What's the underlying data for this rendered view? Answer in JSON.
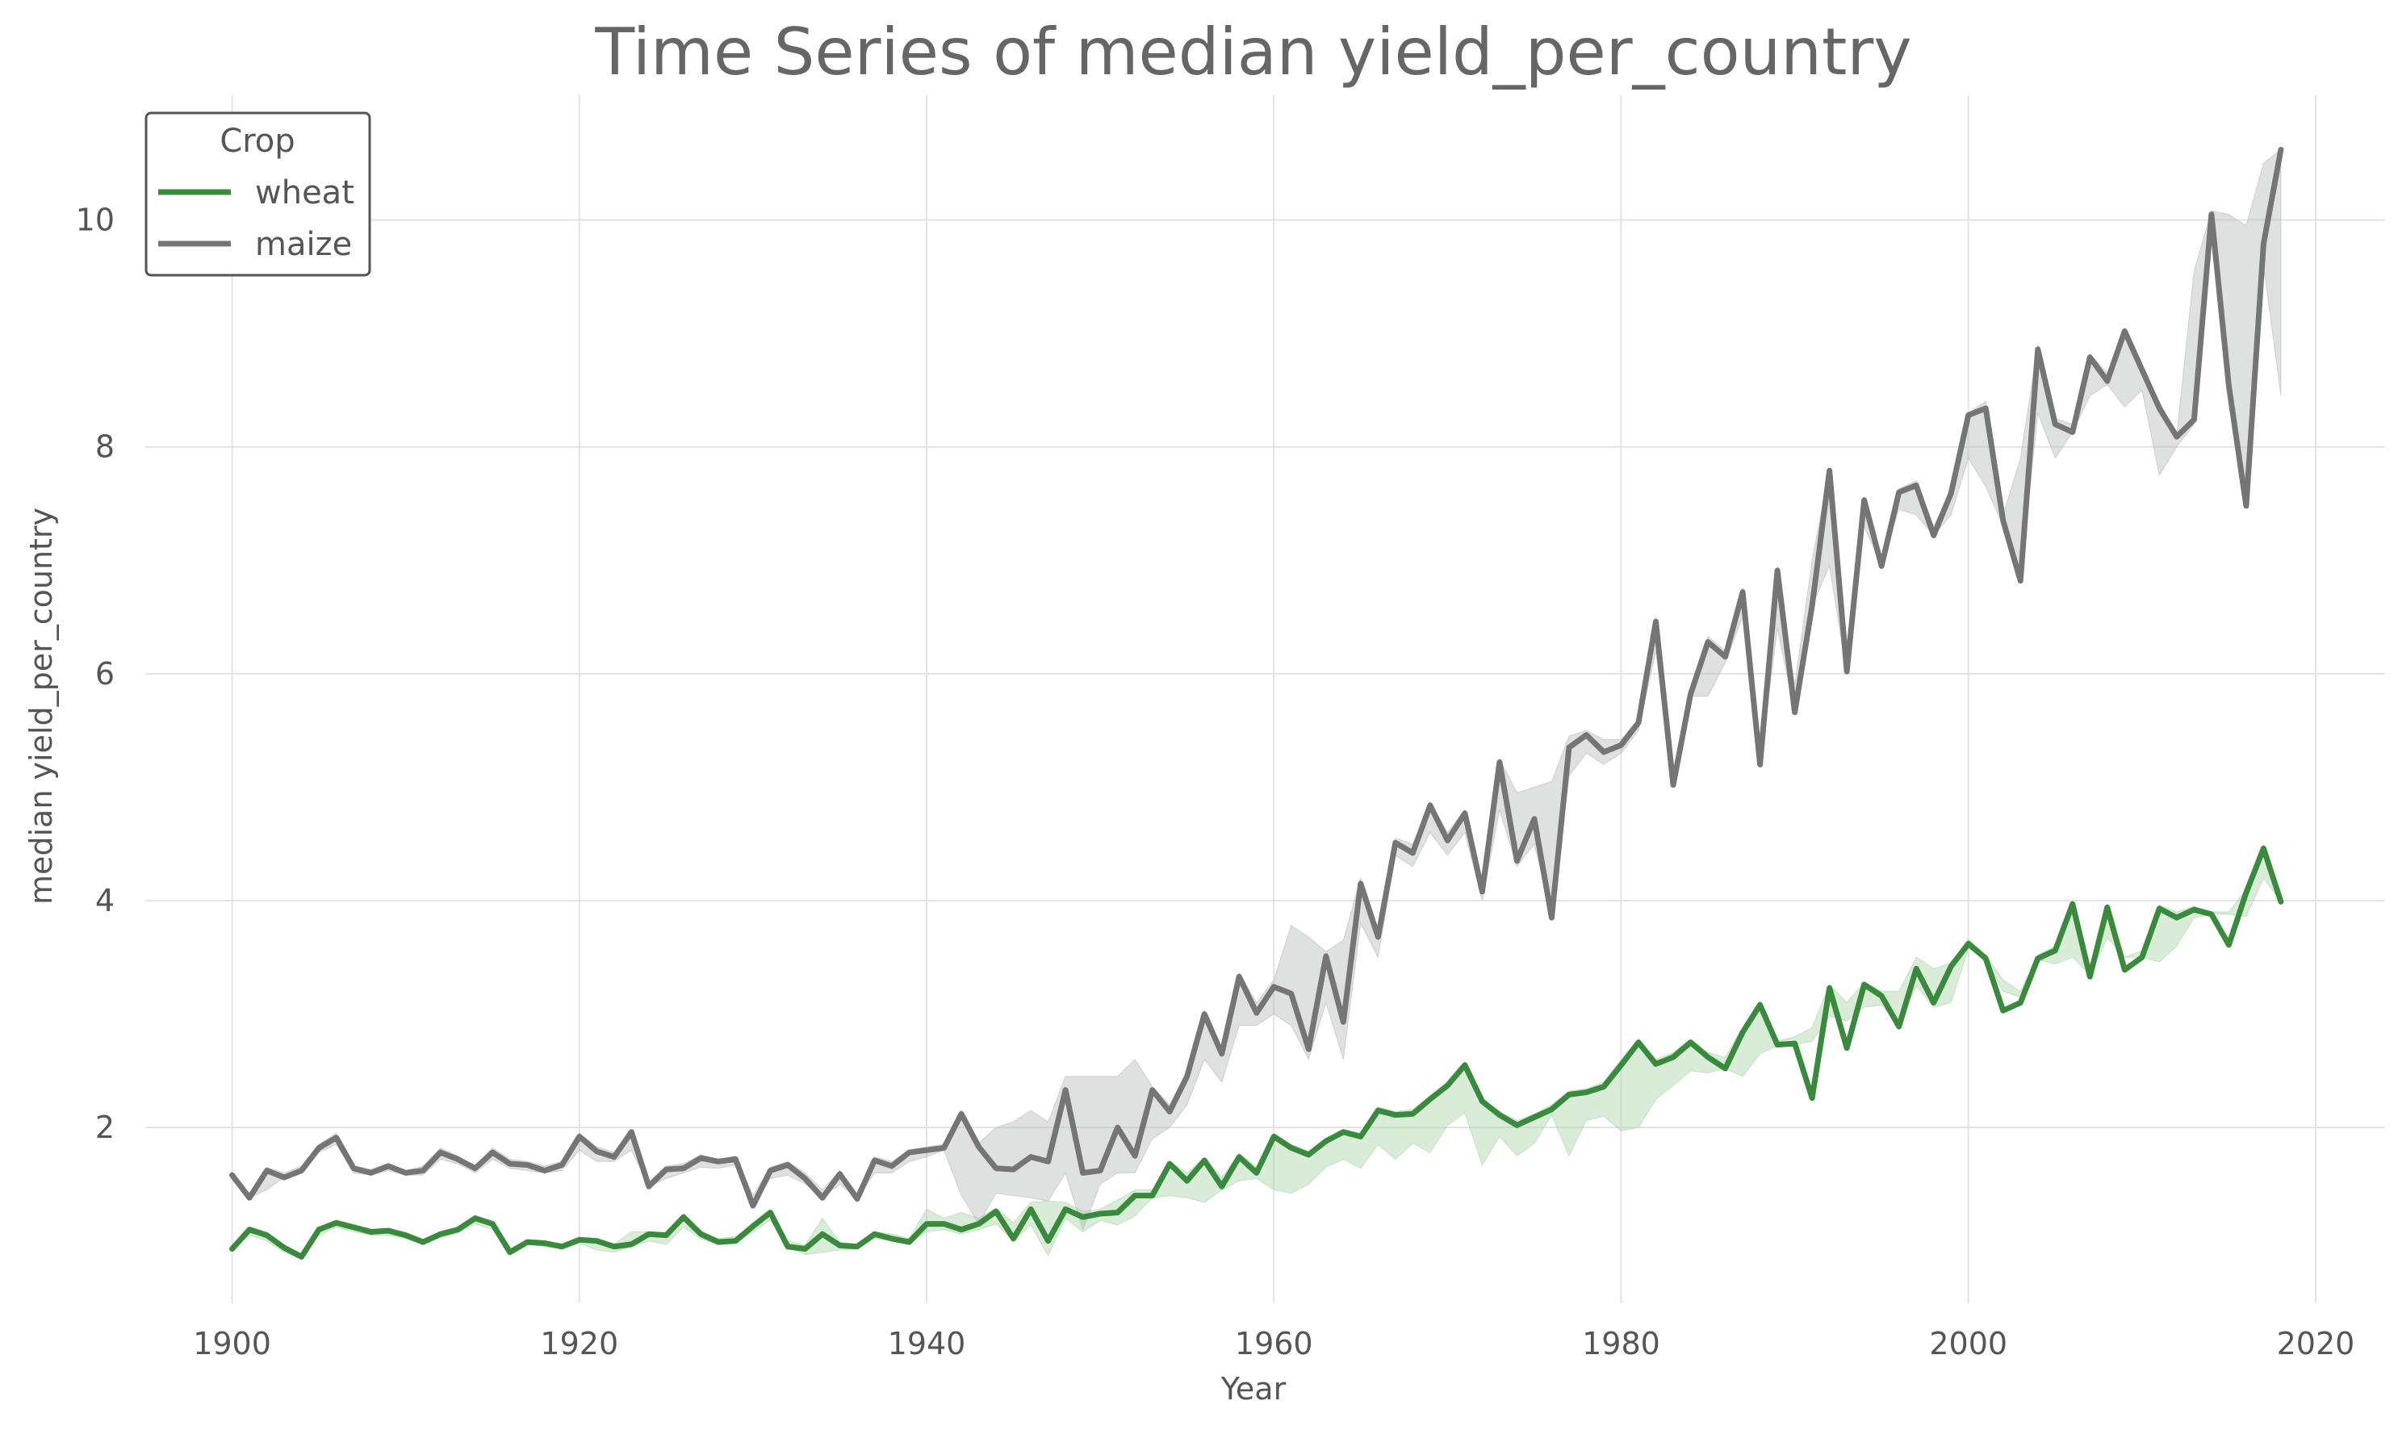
{
  "chart_data": {
    "type": "line",
    "title": "Time Series of median yield_per_country",
    "xlabel": "Year",
    "ylabel": "median yield_per_country",
    "xlim": [
      1895,
      2024
    ],
    "ylim": [
      0.45,
      11.1
    ],
    "xticks": [
      "1900",
      "1920",
      "1940",
      "1960",
      "1980",
      "2000",
      "2020"
    ],
    "yticks": [
      "2",
      "4",
      "6",
      "8",
      "10"
    ],
    "grid": true,
    "legend": {
      "title": "Crop",
      "placement": "top-left"
    },
    "x": [
      1900,
      1901,
      1902,
      1903,
      1904,
      1905,
      1906,
      1907,
      1908,
      1909,
      1910,
      1911,
      1912,
      1913,
      1914,
      1915,
      1916,
      1917,
      1918,
      1919,
      1920,
      1921,
      1922,
      1923,
      1924,
      1925,
      1926,
      1927,
      1928,
      1929,
      1930,
      1931,
      1932,
      1933,
      1934,
      1935,
      1936,
      1937,
      1938,
      1939,
      1940,
      1941,
      1942,
      1943,
      1944,
      1945,
      1946,
      1947,
      1948,
      1949,
      1950,
      1951,
      1952,
      1953,
      1954,
      1955,
      1956,
      1957,
      1958,
      1959,
      1960,
      1961,
      1962,
      1963,
      1964,
      1965,
      1966,
      1967,
      1968,
      1969,
      1970,
      1971,
      1972,
      1973,
      1974,
      1975,
      1976,
      1977,
      1978,
      1979,
      1980,
      1981,
      1982,
      1983,
      1984,
      1985,
      1986,
      1987,
      1988,
      1989,
      1990,
      1991,
      1992,
      1993,
      1994,
      1995,
      1996,
      1997,
      1998,
      1999,
      2000,
      2001,
      2002,
      2003,
      2004,
      2005,
      2006,
      2007,
      2008,
      2009,
      2010,
      2011,
      2012,
      2013,
      2014,
      2015,
      2016,
      2017,
      2018
    ],
    "series": [
      {
        "name": "wheat",
        "color": "#3a8a3e",
        "band_color": "#a8d5a8",
        "values": [
          0.93,
          1.1,
          1.05,
          0.94,
          0.86,
          1.1,
          1.16,
          1.12,
          1.08,
          1.09,
          1.05,
          0.99,
          1.06,
          1.1,
          1.2,
          1.15,
          0.9,
          0.99,
          0.98,
          0.95,
          1.01,
          1.0,
          0.95,
          0.97,
          1.06,
          1.05,
          1.21,
          1.06,
          0.99,
          1.0,
          1.13,
          1.25,
          0.95,
          0.93,
          1.06,
          0.96,
          0.95,
          1.06,
          1.02,
          0.99,
          1.15,
          1.15,
          1.1,
          1.15,
          1.26,
          1.02,
          1.28,
          1.0,
          1.28,
          1.21,
          1.24,
          1.25,
          1.4,
          1.4,
          1.68,
          1.53,
          1.71,
          1.48,
          1.74,
          1.6,
          1.92,
          1.82,
          1.76,
          1.88,
          1.96,
          1.92,
          2.15,
          2.11,
          2.12,
          2.25,
          2.37,
          2.55,
          2.23,
          2.11,
          2.02,
          2.09,
          2.16,
          2.29,
          2.31,
          2.36,
          2.55,
          2.75,
          2.56,
          2.62,
          2.75,
          2.62,
          2.52,
          2.84,
          3.08,
          2.73,
          2.74,
          2.26,
          3.23,
          2.7,
          3.26,
          3.16,
          2.89,
          3.4,
          3.1,
          3.42,
          3.62,
          3.49,
          3.03,
          3.1,
          3.49,
          3.56,
          3.97,
          3.33,
          3.94,
          3.39,
          3.5,
          3.93,
          3.85,
          3.92,
          3.88,
          3.61,
          4.07,
          4.46,
          3.99
        ],
        "band_lower": [
          0.93,
          1.05,
          1.0,
          0.9,
          0.84,
          1.05,
          1.12,
          1.08,
          1.05,
          1.05,
          1.02,
          0.97,
          1.03,
          1.07,
          1.15,
          1.1,
          0.88,
          0.97,
          0.95,
          0.93,
          0.98,
          0.92,
          0.9,
          0.95,
          1.0,
          0.97,
          1.12,
          1.02,
          0.97,
          0.98,
          1.08,
          1.18,
          0.95,
          0.88,
          0.9,
          0.92,
          0.93,
          1.02,
          1.0,
          0.98,
          1.08,
          1.1,
          1.06,
          1.1,
          1.15,
          1.0,
          1.14,
          0.87,
          1.2,
          1.08,
          1.18,
          1.14,
          1.22,
          1.38,
          1.4,
          1.38,
          1.34,
          1.45,
          1.53,
          1.55,
          1.45,
          1.42,
          1.5,
          1.65,
          1.72,
          1.64,
          1.85,
          1.72,
          1.86,
          1.78,
          2.02,
          2.13,
          1.67,
          1.92,
          1.75,
          1.86,
          2.11,
          1.75,
          2.06,
          2.1,
          1.97,
          2.0,
          2.25,
          2.37,
          2.5,
          2.48,
          2.52,
          2.45,
          2.65,
          2.72,
          2.73,
          2.76,
          2.98,
          2.94,
          3.06,
          3.08,
          2.9,
          3.25,
          3.06,
          3.1,
          3.58,
          3.48,
          3.2,
          3.15,
          3.48,
          3.44,
          3.5,
          3.35,
          3.67,
          3.5,
          3.5,
          3.46,
          3.6,
          3.85,
          3.88,
          3.88,
          3.86,
          4.2,
          3.99
        ],
        "band_upper": [
          0.93,
          1.12,
          1.08,
          0.96,
          0.88,
          1.12,
          1.18,
          1.14,
          1.1,
          1.11,
          1.07,
          1.0,
          1.08,
          1.12,
          1.22,
          1.17,
          0.92,
          1.01,
          1.0,
          0.97,
          1.03,
          1.02,
          0.97,
          1.08,
          1.08,
          1.06,
          1.24,
          1.09,
          1.02,
          1.04,
          1.15,
          1.27,
          1.0,
          0.96,
          1.2,
          0.99,
          0.97,
          1.08,
          1.06,
          1.02,
          1.28,
          1.2,
          1.25,
          1.2,
          1.29,
          1.16,
          1.34,
          1.35,
          1.34,
          1.26,
          1.28,
          1.36,
          1.45,
          1.45,
          1.7,
          1.6,
          1.73,
          1.56,
          1.77,
          1.65,
          1.95,
          1.85,
          1.79,
          1.9,
          1.98,
          1.95,
          2.18,
          2.14,
          2.16,
          2.28,
          2.4,
          2.58,
          2.25,
          2.14,
          2.06,
          2.12,
          2.2,
          2.32,
          2.34,
          2.4,
          2.6,
          2.78,
          2.6,
          2.66,
          2.78,
          2.66,
          2.62,
          2.88,
          3.12,
          2.76,
          2.8,
          2.88,
          3.26,
          3.1,
          3.28,
          3.2,
          3.2,
          3.5,
          3.4,
          3.45,
          3.66,
          3.52,
          3.3,
          3.2,
          3.52,
          3.6,
          4.0,
          3.4,
          3.96,
          3.5,
          3.56,
          3.96,
          3.9,
          3.95,
          3.9,
          3.9,
          4.1,
          4.5,
          4.05
        ]
      },
      {
        "name": "maize",
        "color": "#757575",
        "band_color": "#b9bbbb",
        "values": [
          1.58,
          1.38,
          1.62,
          1.56,
          1.62,
          1.82,
          1.91,
          1.64,
          1.6,
          1.66,
          1.6,
          1.62,
          1.78,
          1.72,
          1.64,
          1.78,
          1.68,
          1.67,
          1.62,
          1.67,
          1.92,
          1.79,
          1.74,
          1.96,
          1.48,
          1.63,
          1.64,
          1.73,
          1.7,
          1.72,
          1.31,
          1.62,
          1.67,
          1.55,
          1.38,
          1.59,
          1.37,
          1.71,
          1.66,
          1.78,
          1.8,
          1.82,
          2.12,
          1.83,
          1.64,
          1.63,
          1.74,
          1.7,
          2.33,
          1.6,
          1.62,
          2.0,
          1.75,
          2.33,
          2.14,
          2.45,
          3.0,
          2.65,
          3.33,
          3.01,
          3.24,
          3.18,
          2.69,
          3.51,
          2.93,
          4.15,
          3.68,
          4.51,
          4.42,
          4.84,
          4.53,
          4.77,
          4.08,
          5.22,
          4.35,
          4.72,
          3.85,
          5.35,
          5.46,
          5.31,
          5.37,
          5.57,
          6.46,
          5.02,
          5.82,
          6.28,
          6.15,
          6.72,
          5.2,
          6.91,
          5.66,
          6.6,
          7.79,
          6.02,
          7.53,
          6.95,
          7.6,
          7.66,
          7.22,
          7.59,
          8.28,
          8.34,
          7.35,
          6.82,
          8.86,
          8.2,
          8.13,
          8.79,
          8.58,
          9.02,
          8.68,
          8.34,
          8.09,
          8.24,
          10.05,
          8.54,
          7.48,
          9.79,
          10.62
        ],
        "band_lower": [
          1.58,
          1.38,
          1.45,
          1.56,
          1.6,
          1.78,
          1.85,
          1.6,
          1.58,
          1.62,
          1.58,
          1.58,
          1.72,
          1.68,
          1.6,
          1.72,
          1.64,
          1.62,
          1.6,
          1.62,
          1.8,
          1.7,
          1.7,
          1.8,
          1.48,
          1.55,
          1.6,
          1.65,
          1.64,
          1.67,
          1.31,
          1.55,
          1.58,
          1.5,
          1.38,
          1.5,
          1.37,
          1.6,
          1.6,
          1.7,
          1.74,
          1.8,
          1.4,
          1.15,
          1.42,
          1.4,
          1.38,
          1.35,
          1.6,
          1.1,
          1.5,
          1.6,
          1.6,
          1.9,
          2.0,
          2.2,
          2.6,
          2.4,
          2.9,
          2.9,
          3.0,
          2.9,
          2.6,
          3.1,
          2.6,
          3.8,
          3.5,
          4.4,
          4.3,
          4.6,
          4.4,
          4.6,
          4.0,
          4.8,
          4.3,
          4.5,
          3.85,
          5.1,
          5.3,
          5.2,
          5.3,
          5.5,
          6.2,
          5.0,
          5.8,
          5.8,
          6.1,
          6.5,
          5.2,
          6.4,
          5.66,
          6.6,
          6.95,
          6.0,
          7.3,
          6.95,
          7.45,
          7.4,
          7.22,
          7.4,
          7.9,
          7.65,
          7.3,
          6.82,
          8.3,
          7.9,
          8.13,
          8.45,
          8.55,
          8.35,
          8.5,
          7.75,
          8.0,
          8.2,
          10.0,
          8.4,
          7.48,
          9.6,
          8.45
        ],
        "band_upper": [
          1.58,
          1.42,
          1.65,
          1.6,
          1.66,
          1.85,
          1.95,
          1.66,
          1.63,
          1.68,
          1.62,
          1.66,
          1.82,
          1.75,
          1.66,
          1.82,
          1.72,
          1.7,
          1.66,
          1.7,
          1.95,
          1.83,
          1.78,
          1.98,
          1.52,
          1.66,
          1.68,
          1.76,
          1.72,
          1.75,
          1.4,
          1.65,
          1.7,
          1.6,
          1.45,
          1.62,
          1.42,
          1.74,
          1.7,
          1.8,
          1.83,
          1.85,
          2.15,
          1.86,
          2.0,
          2.05,
          2.15,
          2.05,
          2.45,
          2.45,
          2.45,
          2.45,
          2.6,
          2.36,
          2.2,
          2.5,
          3.03,
          2.7,
          3.36,
          3.1,
          3.3,
          3.78,
          3.68,
          3.55,
          3.65,
          4.2,
          3.72,
          4.55,
          4.5,
          4.87,
          4.6,
          4.8,
          4.15,
          5.25,
          4.95,
          5.0,
          5.05,
          5.45,
          5.5,
          5.42,
          5.42,
          5.6,
          6.5,
          5.05,
          5.85,
          6.33,
          6.2,
          6.76,
          5.25,
          6.95,
          5.9,
          7.0,
          7.8,
          6.05,
          7.56,
          7.0,
          7.63,
          7.7,
          7.3,
          7.62,
          8.3,
          8.4,
          7.4,
          7.9,
          8.9,
          8.25,
          8.2,
          8.82,
          8.65,
          9.05,
          8.7,
          8.4,
          8.1,
          9.55,
          10.08,
          10.05,
          9.95,
          10.5,
          10.62
        ]
      }
    ]
  }
}
